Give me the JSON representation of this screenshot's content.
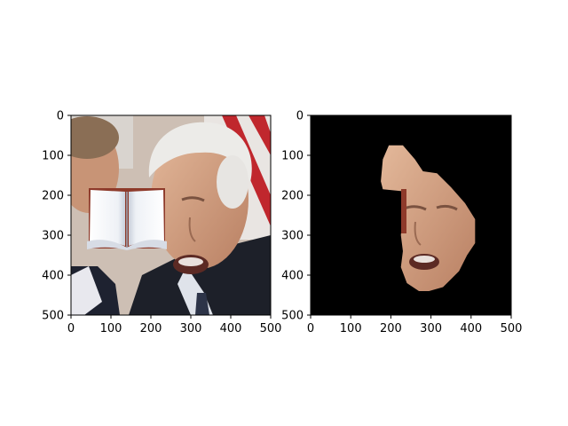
{
  "figure": {
    "background": "#ffffff"
  },
  "chart_data": [
    {
      "type": "image",
      "title": "",
      "xlabel": "",
      "ylabel": "",
      "xlim": [
        0,
        500
      ],
      "ylim": [
        500,
        0
      ],
      "x_ticks": [
        0,
        100,
        200,
        300,
        400,
        500
      ],
      "y_ticks": [
        0,
        100,
        200,
        300,
        400,
        500
      ],
      "grid": false,
      "image_content": "photo of an older man's face with an open-book overlay pasted on the left",
      "overlay": {
        "icon": "open-book-icon",
        "x_range": [
          44,
          236
        ],
        "y_range": [
          183,
          333
        ]
      }
    },
    {
      "type": "image",
      "title": "",
      "xlabel": "",
      "ylabel": "",
      "xlim": [
        0,
        500
      ],
      "ylim": [
        500,
        0
      ],
      "x_ticks": [
        0,
        100,
        200,
        300,
        400,
        500
      ],
      "y_ticks": [
        0,
        100,
        200,
        300,
        400,
        500
      ],
      "grid": false,
      "image_content": "segmented face region on black background",
      "background_color": "#000000",
      "mask_outline": [
        [
          195,
          75
        ],
        [
          230,
          75
        ],
        [
          260,
          110
        ],
        [
          280,
          140
        ],
        [
          315,
          145
        ],
        [
          350,
          180
        ],
        [
          385,
          220
        ],
        [
          410,
          260
        ],
        [
          410,
          320
        ],
        [
          390,
          350
        ],
        [
          370,
          390
        ],
        [
          330,
          430
        ],
        [
          295,
          440
        ],
        [
          270,
          440
        ],
        [
          240,
          420
        ],
        [
          225,
          380
        ],
        [
          230,
          340
        ],
        [
          225,
          300
        ],
        [
          230,
          250
        ],
        [
          230,
          190
        ],
        [
          180,
          185
        ],
        [
          175,
          165
        ],
        [
          180,
          110
        ]
      ]
    }
  ]
}
